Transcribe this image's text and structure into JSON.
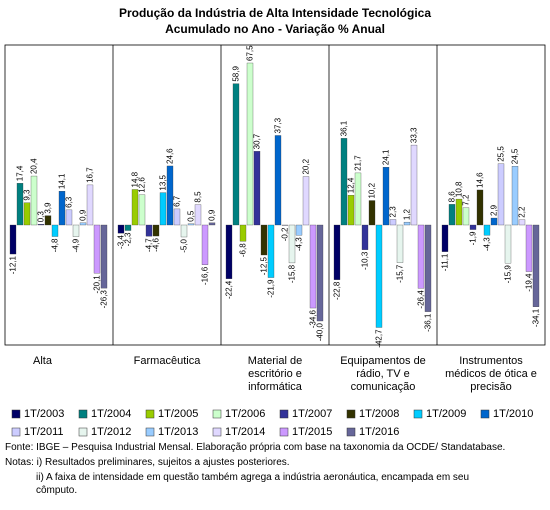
{
  "chart_data": {
    "type": "bar",
    "title": "Produção da Indústria de Alta Intensidade Tecnológica",
    "subtitle": "Acumulado no Ano - Variação % Anual",
    "categories": [
      "Alta",
      "Farmacêutica",
      "Material de escritório e informática",
      "Equipamentos de rádio, TV e comunicação",
      "Instrumentos médicos de ótica e precisão"
    ],
    "ylim": [
      -50,
      75
    ],
    "series": [
      {
        "name": "1T/2003",
        "color": "#000066",
        "values": [
          -12.1,
          -3.4,
          -22.4,
          -22.8,
          -11.1
        ],
        "value_labels": [
          "-12,1",
          "-3,4",
          "-22,4",
          "-22,8",
          "-11,1"
        ]
      },
      {
        "name": "1T/2004",
        "color": "#008080",
        "values": [
          17.4,
          -2.3,
          58.9,
          36.1,
          8.6
        ],
        "value_labels": [
          "17,4",
          "-2,3",
          "58,9",
          "36,1",
          "8,6"
        ]
      },
      {
        "name": "1T/2005",
        "color": "#99cc00",
        "values": [
          9.3,
          14.8,
          -6.8,
          12.4,
          10.8
        ],
        "value_labels": [
          "9,3",
          "14,8",
          "-6,8",
          "12,4",
          "10,8"
        ]
      },
      {
        "name": "1T/2006",
        "color": "#ccffcc",
        "values": [
          20.4,
          12.6,
          67.5,
          21.7,
          7.2
        ],
        "value_labels": [
          "20,4",
          "12,6",
          "67,5",
          "21,7",
          "7,2"
        ]
      },
      {
        "name": "1T/2007",
        "color": "#333399",
        "values": [
          0.3,
          -4.7,
          30.7,
          -10.3,
          -1.9
        ],
        "value_labels": [
          "0,3",
          "-4,7",
          "30,7",
          "-10,3",
          "-1,9"
        ]
      },
      {
        "name": "1T/2008",
        "color": "#333300",
        "values": [
          3.9,
          -4.6,
          -12.5,
          10.2,
          14.6
        ],
        "value_labels": [
          "3,9",
          "-4,6",
          "-12,5",
          "10,2",
          "14,6"
        ]
      },
      {
        "name": "1T/2009",
        "color": "#00ccff",
        "values": [
          -4.8,
          13.5,
          -21.9,
          -42.7,
          -4.3
        ],
        "value_labels": [
          "-4,8",
          "13,5",
          "-21,9",
          "-42,7",
          "-4,3"
        ]
      },
      {
        "name": "1T/2010",
        "color": "#0066cc",
        "values": [
          14.1,
          24.6,
          37.3,
          24.1,
          2.9
        ],
        "value_labels": [
          "14,1",
          "24,6",
          "37,3",
          "24,1",
          "2,9"
        ]
      },
      {
        "name": "1T/2011",
        "color": "#ccccff",
        "values": [
          6.3,
          6.7,
          -0.2,
          2.3,
          25.5
        ],
        "value_labels": [
          "6,3",
          "6,7",
          "-0,2",
          "2,3",
          "25,5"
        ]
      },
      {
        "name": "1T/2012",
        "color": "#e6f5ee",
        "values": [
          -4.9,
          -5.0,
          -15.8,
          -15.7,
          -15.9
        ],
        "value_labels": [
          "-4,9",
          "-5,0",
          "-15,8",
          "-15,7",
          "-15,9"
        ]
      },
      {
        "name": "1T/2013",
        "color": "#99ccff",
        "values": [
          0.9,
          0.5,
          -4.3,
          1.2,
          24.5
        ],
        "value_labels": [
          "0,9",
          "0,5",
          "-4,3",
          "1,2",
          "24,5"
        ]
      },
      {
        "name": "1T/2014",
        "color": "#e0d8ff",
        "values": [
          16.7,
          8.5,
          20.2,
          33.3,
          2.2
        ],
        "value_labels": [
          "16,7",
          "8,5",
          "20,2",
          "33,3",
          "2,2"
        ]
      },
      {
        "name": "1T/2015",
        "color": "#cc99ff",
        "values": [
          -20.1,
          -16.6,
          -34.6,
          -26.4,
          -19.4
        ],
        "value_labels": [
          "-20,1",
          "-16,6",
          "-34,6",
          "-26,4",
          "-19,4"
        ]
      },
      {
        "name": "1T/2016",
        "color": "#666699",
        "values": [
          -26.3,
          0.9,
          -40.0,
          -36.1,
          -34.1
        ],
        "value_labels": [
          "-26,3",
          "0,9",
          "-40,0",
          "-36,1",
          "-34,1"
        ]
      }
    ],
    "notes": [
      "Fonte: IBGE – Pesquisa Industrial Mensal. Elaboração própria com base na taxonomia da OCDE/ Standatabase.",
      "Notas: i) Resultados preliminares, sujeitos a ajustes posteriores.",
      "ii) A faixa de intensidade em questão também agrega a indústria aeronáutica, encampada em seu cômputo."
    ]
  }
}
